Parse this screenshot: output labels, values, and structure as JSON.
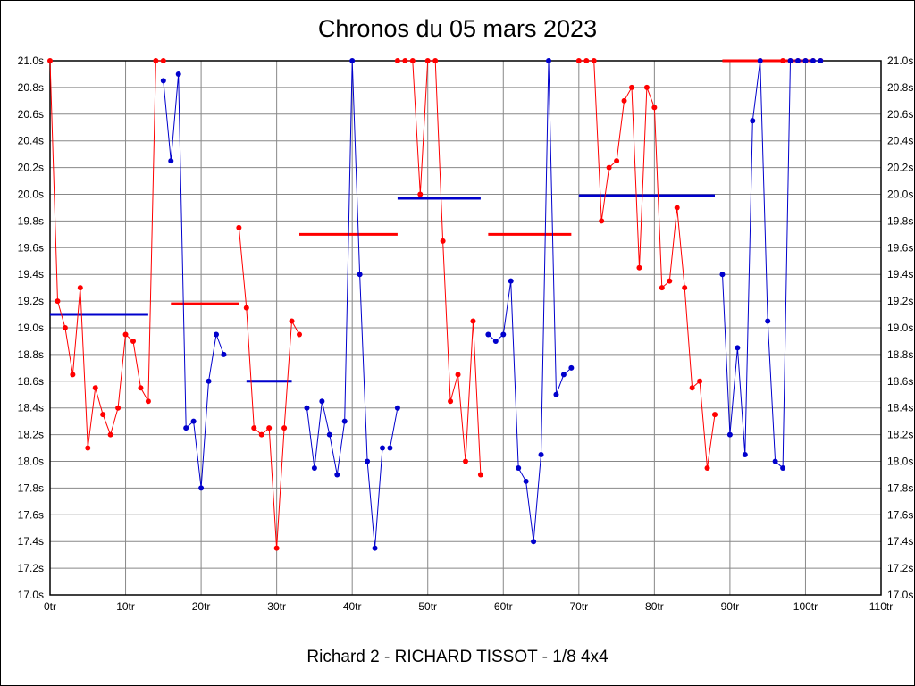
{
  "title": "Chronos du 05 mars 2023",
  "footer": "Richard 2 - RICHARD TISSOT - 1/8 4x4",
  "chart_data": {
    "type": "line",
    "title": "Chronos du 05 mars 2023",
    "subtitle": "Richard 2 - RICHARD TISSOT - 1/8 4x4",
    "xlim": [
      0,
      110
    ],
    "ylim": [
      17.0,
      21.0
    ],
    "x_tick_step": 10,
    "y_tick_step": 0.2,
    "x_unit": "tr",
    "y_unit": "s",
    "grid": true,
    "legend": "none",
    "x_tick_labels": [
      "0tr",
      "10tr",
      "20tr",
      "30tr",
      "40tr",
      "50tr",
      "60tr",
      "70tr",
      "80tr",
      "90tr",
      "100tr",
      "110tr"
    ],
    "y_tick_labels": [
      "17.0s",
      "17.2s",
      "17.4s",
      "17.6s",
      "17.8s",
      "18.0s",
      "18.2s",
      "18.4s",
      "18.6s",
      "18.8s",
      "19.0s",
      "19.2s",
      "19.4s",
      "19.6s",
      "19.8s",
      "20.0s",
      "20.2s",
      "20.4s",
      "20.6s",
      "20.8s",
      "21.0s"
    ],
    "colors": {
      "red": "#ff0000",
      "blue": "#0000cc",
      "grid": "#888888",
      "axis": "#000000"
    },
    "series": [
      {
        "name": "driver-red",
        "color": "#ff0000",
        "points": [
          [
            0,
            21.0
          ],
          [
            1,
            19.2
          ],
          [
            2,
            19.0
          ],
          [
            3,
            18.65
          ],
          [
            4,
            19.3
          ],
          [
            5,
            18.1
          ],
          [
            6,
            18.55
          ],
          [
            7,
            18.35
          ],
          [
            8,
            18.2
          ],
          [
            9,
            18.4
          ],
          [
            10,
            18.95
          ],
          [
            11,
            18.9
          ],
          [
            12,
            18.55
          ],
          [
            13,
            18.45
          ],
          [
            14,
            21.0
          ],
          [
            15,
            21.0
          ],
          [
            25,
            19.75
          ],
          [
            26,
            19.15
          ],
          [
            27,
            18.25
          ],
          [
            28,
            18.2
          ],
          [
            29,
            18.25
          ],
          [
            30,
            17.35
          ],
          [
            31,
            18.25
          ],
          [
            32,
            19.05
          ],
          [
            33,
            18.95
          ],
          [
            46,
            21.0
          ],
          [
            47,
            21.0
          ],
          [
            48,
            21.0
          ],
          [
            49,
            20.0
          ],
          [
            50,
            21.0
          ],
          [
            51,
            21.0
          ],
          [
            52,
            19.65
          ],
          [
            53,
            18.45
          ],
          [
            54,
            18.65
          ],
          [
            55,
            18.0
          ],
          [
            56,
            19.05
          ],
          [
            57,
            17.9
          ],
          [
            70,
            21.0
          ],
          [
            71,
            21.0
          ],
          [
            72,
            21.0
          ],
          [
            73,
            19.8
          ],
          [
            74,
            20.2
          ],
          [
            75,
            20.25
          ],
          [
            76,
            20.7
          ],
          [
            77,
            20.8
          ],
          [
            78,
            19.45
          ],
          [
            79,
            20.8
          ],
          [
            80,
            20.65
          ],
          [
            81,
            19.3
          ],
          [
            82,
            19.35
          ],
          [
            83,
            19.9
          ],
          [
            84,
            19.3
          ],
          [
            85,
            18.55
          ],
          [
            86,
            18.6
          ],
          [
            87,
            17.95
          ],
          [
            88,
            18.35
          ],
          [
            94,
            21.0
          ],
          [
            97,
            21.0
          ],
          [
            98,
            21.0
          ],
          [
            99,
            21.0
          ],
          [
            100,
            21.0
          ],
          [
            101,
            21.0
          ],
          [
            102,
            21.0
          ]
        ]
      },
      {
        "name": "driver-blue",
        "color": "#0000cc",
        "points": [
          [
            15,
            20.85
          ],
          [
            16,
            20.25
          ],
          [
            17,
            20.9
          ],
          [
            18,
            18.25
          ],
          [
            19,
            18.3
          ],
          [
            20,
            17.8
          ],
          [
            21,
            18.6
          ],
          [
            22,
            18.95
          ],
          [
            23,
            18.8
          ],
          [
            34,
            18.4
          ],
          [
            35,
            17.95
          ],
          [
            36,
            18.45
          ],
          [
            37,
            18.2
          ],
          [
            38,
            17.9
          ],
          [
            39,
            18.3
          ],
          [
            40,
            21.0
          ],
          [
            41,
            19.4
          ],
          [
            42,
            18.0
          ],
          [
            43,
            17.35
          ],
          [
            44,
            18.1
          ],
          [
            45,
            18.1
          ],
          [
            46,
            18.4
          ],
          [
            58,
            18.95
          ],
          [
            59,
            18.9
          ],
          [
            60,
            18.95
          ],
          [
            61,
            19.35
          ],
          [
            62,
            17.95
          ],
          [
            63,
            17.85
          ],
          [
            64,
            17.4
          ],
          [
            65,
            18.05
          ],
          [
            66,
            21.0
          ],
          [
            67,
            18.5
          ],
          [
            68,
            18.65
          ],
          [
            69,
            18.7
          ],
          [
            89,
            19.4
          ],
          [
            90,
            18.2
          ],
          [
            91,
            18.85
          ],
          [
            92,
            18.05
          ],
          [
            93,
            20.55
          ],
          [
            94,
            21.0
          ],
          [
            95,
            19.05
          ],
          [
            96,
            18.0
          ],
          [
            97,
            17.95
          ],
          [
            98,
            21.0
          ],
          [
            99,
            21.0
          ],
          [
            100,
            21.0
          ],
          [
            101,
            21.0
          ],
          [
            102,
            21.0
          ]
        ]
      }
    ],
    "stint_average_lines": [
      {
        "color": "#0000cc",
        "y": 19.1,
        "x1": 0,
        "x2": 13
      },
      {
        "color": "#ff0000",
        "y": 19.18,
        "x1": 16,
        "x2": 25
      },
      {
        "color": "#0000cc",
        "y": 18.6,
        "x1": 26,
        "x2": 32
      },
      {
        "color": "#ff0000",
        "y": 19.7,
        "x1": 33,
        "x2": 46
      },
      {
        "color": "#0000cc",
        "y": 19.97,
        "x1": 46,
        "x2": 57
      },
      {
        "color": "#ff0000",
        "y": 19.7,
        "x1": 58,
        "x2": 69
      },
      {
        "color": "#0000cc",
        "y": 19.99,
        "x1": 70,
        "x2": 88
      },
      {
        "color": "#ff0000",
        "y": 21.0,
        "x1": 89,
        "x2": 101
      }
    ]
  }
}
